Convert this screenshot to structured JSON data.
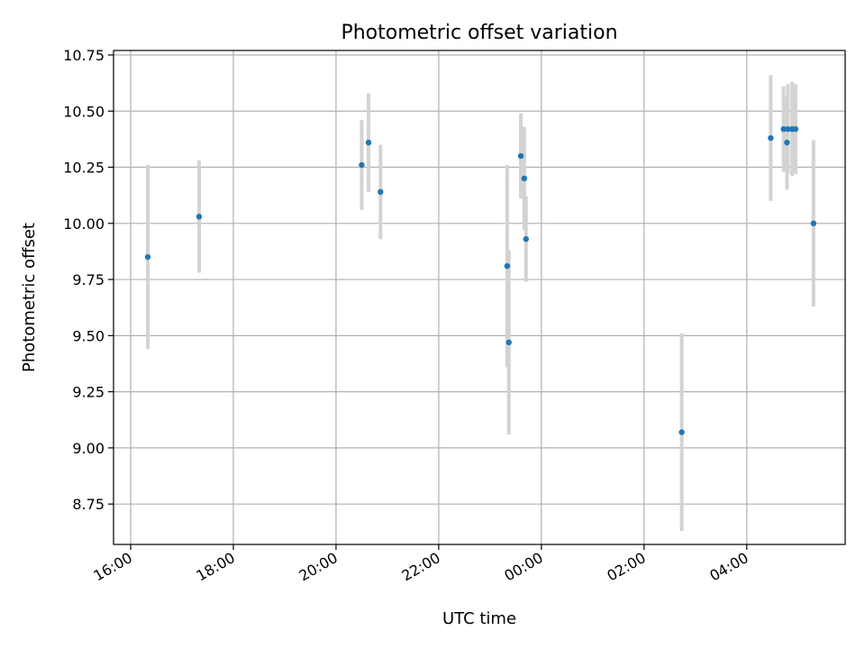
{
  "chart_data": {
    "type": "scatter",
    "title": "Photometric offset variation",
    "xlabel": "UTC time",
    "ylabel": "Photometric offset",
    "x_tick_labels": [
      "16:00",
      "18:00",
      "20:00",
      "22:00",
      "00:00",
      "02:00",
      "04:00"
    ],
    "y_tick_labels": [
      "8.75",
      "9.00",
      "9.25",
      "9.50",
      "9.75",
      "10.00",
      "10.25",
      "10.50",
      "10.75"
    ],
    "xlim": [
      "15:40",
      "05:55"
    ],
    "ylim": [
      8.57,
      10.77
    ],
    "grid": true,
    "legend": "none",
    "colors": {
      "points": "#1f77b4",
      "errorbars": "#d3d3d3",
      "grid": "#b0b0b0"
    },
    "series": [
      {
        "x": [
          "16:20",
          "17:20",
          "20:30",
          "20:38",
          "20:52",
          "23:20",
          "23:22",
          "23:36",
          "23:40",
          "23:42",
          "02:44",
          "04:28",
          "04:43",
          "04:47",
          "04:48",
          "04:53",
          "04:57",
          "05:18"
        ],
        "y": [
          9.85,
          10.03,
          10.26,
          10.36,
          10.14,
          9.81,
          9.47,
          10.3,
          10.2,
          9.93,
          9.07,
          10.38,
          10.42,
          10.36,
          10.42,
          10.42,
          10.42,
          10.0
        ],
        "yerr": [
          0.41,
          0.25,
          0.2,
          0.22,
          0.21,
          0.45,
          0.41,
          0.19,
          0.23,
          0.19,
          0.44,
          0.28,
          0.19,
          0.21,
          0.2,
          0.21,
          0.2,
          0.37
        ]
      }
    ]
  }
}
